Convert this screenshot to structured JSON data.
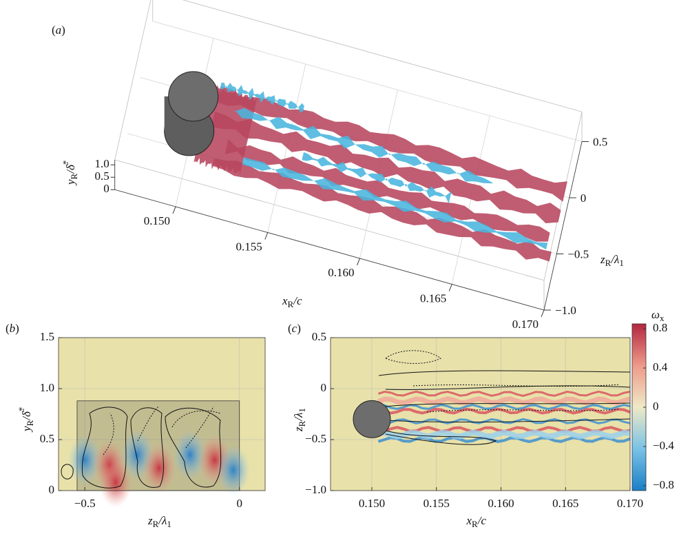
{
  "chart_data": [
    {
      "type": "surface3d",
      "panel": "(a)",
      "xlabel": "xR/c",
      "ylabel": "yR/δ̄*",
      "zlabel": "zR/λ1",
      "xlim": [
        0.1467,
        0.17
      ],
      "xticks": [
        {
          "value": 0.15,
          "label": "0.150"
        },
        0.155,
        {
          "value": 0.16,
          "label": "0.160"
        },
        0.165,
        {
          "value": 0.17,
          "label": "0.170"
        }
      ],
      "ylim": [
        0,
        1.2
      ],
      "yticks": [
        0,
        0.5,
        {
          "value": 1,
          "label": "1.0"
        }
      ],
      "zlim": [
        -1,
        0.5
      ],
      "zticks": [
        {
          "value": -1,
          "label": "−1.0"
        },
        {
          "value": -0.5,
          "label": "−0.5"
        },
        0,
        0.5
      ],
      "grid": true
    },
    {
      "type": "contour",
      "panel": "(b)",
      "xlabel": "zR/λ1",
      "ylabel": "yR/δ̄*",
      "xlim": [
        -0.585,
        0.083
      ],
      "xticks": [
        {
          "value": -0.5,
          "label": "−0.5"
        },
        0
      ],
      "ylim": [
        0,
        1.5
      ],
      "yticks": [
        0,
        0.5,
        {
          "value": 1,
          "label": "1.0"
        },
        1.5
      ],
      "grid": true,
      "background": "#e8e1aa"
    },
    {
      "type": "contour",
      "panel": "(c)",
      "xlabel": "xR/c",
      "ylabel": "zR/λ1",
      "xlim": [
        0.1468,
        0.17
      ],
      "xticks": [
        {
          "value": 0.15,
          "label": "0.150"
        },
        0.155,
        {
          "value": 0.16,
          "label": "0.160"
        },
        0.165,
        {
          "value": 0.17,
          "label": "0.170"
        }
      ],
      "ylim": [
        -1,
        0.5
      ],
      "yticks": [
        {
          "value": -1,
          "label": "−1.0"
        },
        {
          "value": -0.5,
          "label": "−0.5"
        },
        0,
        0.5
      ],
      "grid": true,
      "background": "#e8e1aa",
      "colorbar": {
        "label": "ωx",
        "clim": [
          -0.85,
          0.85
        ],
        "ticks": [
          {
            "value": -0.8,
            "label": "−0.8"
          },
          {
            "value": -0.4,
            "label": "−0.4"
          },
          0,
          0.4,
          0.8
        ]
      }
    }
  ]
}
